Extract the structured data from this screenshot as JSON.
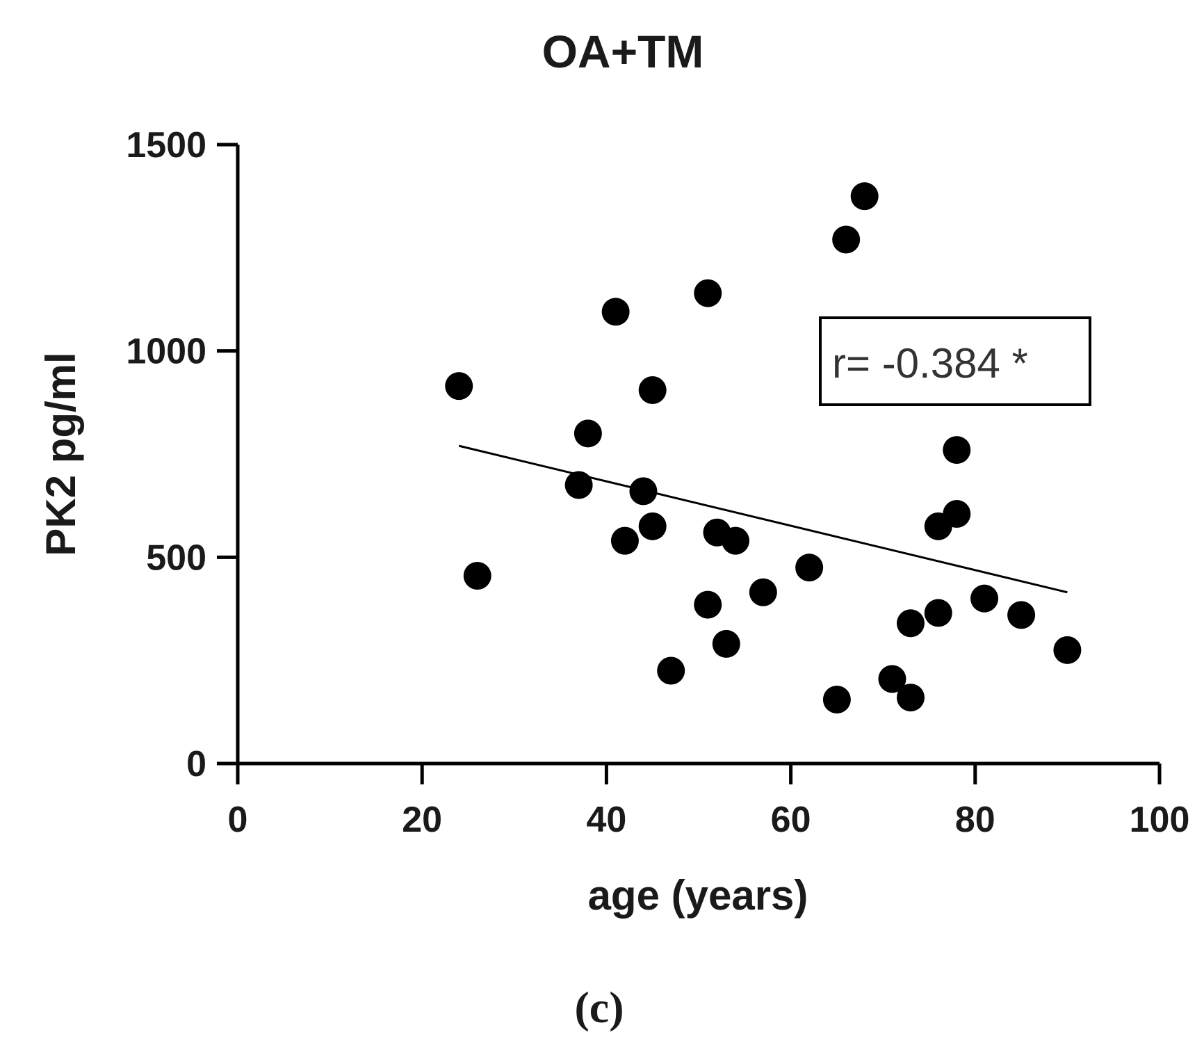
{
  "chart_data": {
    "type": "scatter",
    "title": "OA+TM",
    "xlabel": "age (years)",
    "ylabel": "PK2 pg/ml",
    "xlim": [
      0,
      100
    ],
    "ylim": [
      0,
      1500
    ],
    "x_ticks": [
      "0",
      "20",
      "40",
      "60",
      "80",
      "100"
    ],
    "y_ticks": [
      "0",
      "500",
      "1000",
      "1500"
    ],
    "grid": false,
    "legend": "none",
    "series": [
      {
        "name": "OA+TM",
        "points": [
          [
            24,
            915
          ],
          [
            26,
            455
          ],
          [
            37,
            675
          ],
          [
            38,
            800
          ],
          [
            41,
            1095
          ],
          [
            42,
            540
          ],
          [
            44,
            660
          ],
          [
            45,
            905
          ],
          [
            45,
            575
          ],
          [
            47,
            225
          ],
          [
            51,
            1140
          ],
          [
            51,
            385
          ],
          [
            52,
            560
          ],
          [
            53,
            290
          ],
          [
            54,
            540
          ],
          [
            57,
            415
          ],
          [
            62,
            475
          ],
          [
            65,
            155
          ],
          [
            66,
            1270
          ],
          [
            68,
            1375
          ],
          [
            71,
            205
          ],
          [
            73,
            160
          ],
          [
            73,
            340
          ],
          [
            76,
            575
          ],
          [
            76,
            365
          ],
          [
            78,
            760
          ],
          [
            78,
            605
          ],
          [
            81,
            400
          ],
          [
            85,
            360
          ],
          [
            90,
            275
          ]
        ]
      }
    ],
    "fit_line": {
      "x": [
        24,
        90
      ],
      "y": [
        770,
        415
      ]
    },
    "annotation": "r= -0.384 *",
    "color": "#000000"
  },
  "panel_label": "(c)"
}
